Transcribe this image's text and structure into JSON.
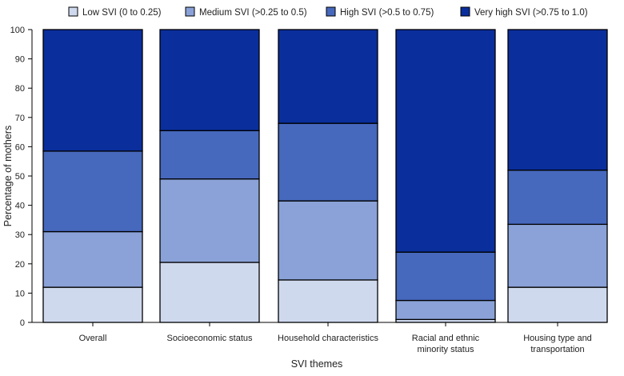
{
  "chart_data": {
    "type": "bar",
    "stacked": true,
    "categories": [
      [
        "Overall"
      ],
      [
        "Socioeconomic status"
      ],
      [
        "Household characteristics"
      ],
      [
        "Racial and ethnic",
        "minority status"
      ],
      [
        "Housing type and",
        "transportation"
      ]
    ],
    "series": [
      {
        "name": "Low SVI (0 to 0.25)",
        "color": "#cfd9ee",
        "values": [
          12,
          20.5,
          14.5,
          1,
          12
        ]
      },
      {
        "name": "Medium SVI (>0.25 to 0.5)",
        "color": "#8aa2d8",
        "values": [
          19,
          28.5,
          27,
          6.5,
          21.5
        ]
      },
      {
        "name": "High SVI (>0.5 to 0.75)",
        "color": "#4668bd",
        "values": [
          27.5,
          16.5,
          26.5,
          16.5,
          18.5
        ]
      },
      {
        "name": "Very high SVI (>0.75 to 1.0)",
        "color": "#0a2e9c",
        "values": [
          41.5,
          34.5,
          32,
          76,
          48
        ]
      }
    ],
    "xlabel": "SVI themes",
    "ylabel": "Percentage of mothers",
    "ylim": [
      0,
      100
    ],
    "yticks": [
      0,
      10,
      20,
      30,
      40,
      50,
      60,
      70,
      80,
      90,
      100
    ],
    "grid": false,
    "legend_position": "top"
  }
}
